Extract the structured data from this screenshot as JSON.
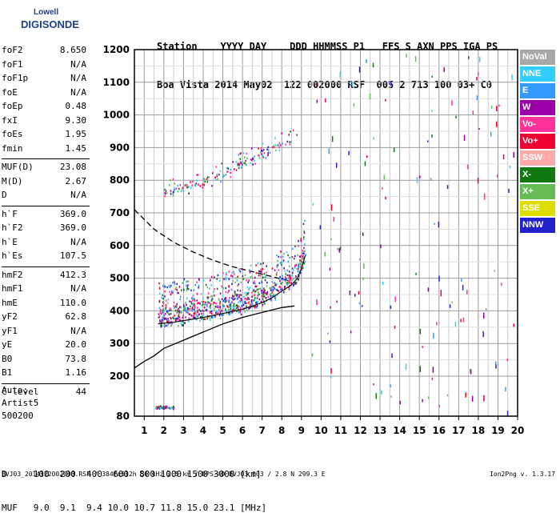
{
  "logo": {
    "line1": "Lowell",
    "line2": "DIGISONDE"
  },
  "header": {
    "line1": "Station    YYYY DAY    DDD HHMMSS P1   FFS S AXN PPS IGA PS",
    "line2": "Boa Vista 2014 May02  122 002000 RSF  005 2 713 100 03+ C0"
  },
  "params": [
    {
      "k": "foF2",
      "v": "8.650"
    },
    {
      "k": "foF1",
      "v": "N/A"
    },
    {
      "k": "foF1p",
      "v": "N/A"
    },
    {
      "k": "foE",
      "v": "N/A"
    },
    {
      "k": "foEp",
      "v": "0.48"
    },
    {
      "k": "fxI",
      "v": "9.30"
    },
    {
      "k": "foEs",
      "v": "1.95"
    },
    {
      "k": "fmin",
      "v": "1.45"
    },
    {
      "k": "MUF(D)",
      "v": "23.08"
    },
    {
      "k": "M(D)",
      "v": "2.67"
    },
    {
      "k": "D",
      "v": "N/A"
    },
    {
      "k": "h`F",
      "v": "369.0"
    },
    {
      "k": "h`F2",
      "v": "369.0"
    },
    {
      "k": "h`E",
      "v": "N/A"
    },
    {
      "k": "h`Es",
      "v": "107.5"
    },
    {
      "k": "hmF2",
      "v": "412.3"
    },
    {
      "k": "hmF1",
      "v": "N/A"
    },
    {
      "k": "hmE",
      "v": "110.0"
    },
    {
      "k": "yF2",
      "v": "62.8"
    },
    {
      "k": "yF1",
      "v": "N/A"
    },
    {
      "k": "yE",
      "v": "20.0"
    },
    {
      "k": "B0",
      "v": "73.8"
    },
    {
      "k": "B1",
      "v": "1.16"
    },
    {
      "k": "C-level",
      "v": "44"
    }
  ],
  "auto": {
    "line1": "Auto:",
    "line2": "Artist5",
    "line3": "500200"
  },
  "legend": [
    {
      "label": "NoVal",
      "color": "#a8a8a8"
    },
    {
      "label": "NNE",
      "color": "#33ccff"
    },
    {
      "label": "E",
      "color": "#3399ff"
    },
    {
      "label": "W",
      "color": "#9900aa"
    },
    {
      "label": "Vo-",
      "color": "#ff3399"
    },
    {
      "label": "Vo+",
      "color": "#ee0033"
    },
    {
      "label": "SSW",
      "color": "#ffaaaa"
    },
    {
      "label": "X-",
      "color": "#117711"
    },
    {
      "label": "X+",
      "color": "#66bb55"
    },
    {
      "label": "SSE",
      "color": "#dddd00"
    },
    {
      "label": "NNW",
      "color": "#2222cc"
    }
  ],
  "conversion": {
    "line1": "D     100  200  400  600  800 1000 1500 3000 [km]",
    "line2": "MUF   9.0  9.1  9.4 10.0 10.7 11.8 15.0 23.1 [MHz]"
  },
  "footer": {
    "left": "BVJ03_2014122002000.RSF / 384fx512h 50 kHz 2.5 km / DPS-4D BVJ03 003 / 2.8 N 299.3 E",
    "right": "Ion2Png v. 1.3.17"
  },
  "chart_data": {
    "type": "scatter",
    "xlim": [
      0.5,
      20
    ],
    "ylim": [
      80,
      1200
    ],
    "xticks": [
      "1",
      "2",
      "3",
      "4",
      "5",
      "6",
      "7",
      "8",
      "9",
      "10",
      "11",
      "12",
      "13",
      "14",
      "15",
      "16",
      "17",
      "18",
      "19",
      "20"
    ],
    "yticks": [
      "80",
      "200",
      "300",
      "400",
      "500",
      "600",
      "700",
      "800",
      "900",
      "1000",
      "1100",
      "1200"
    ],
    "grid": true,
    "trace_F2": {
      "x": [
        1.7,
        2,
        2.5,
        3,
        4,
        5,
        6,
        7,
        7.5,
        8,
        8.5,
        8.8,
        9,
        9.2
      ],
      "y": [
        360,
        362,
        365,
        370,
        380,
        392,
        405,
        425,
        440,
        460,
        480,
        500,
        530,
        570
      ]
    },
    "trace_F2_second": {
      "x": [
        2,
        3,
        4,
        5,
        6,
        7,
        8,
        8.8
      ],
      "y": [
        760,
        775,
        795,
        820,
        850,
        880,
        910,
        930
      ]
    },
    "profile_solid": {
      "x": [
        0.5,
        1,
        1.5,
        2,
        3,
        4,
        5,
        6,
        7,
        8,
        8.65
      ],
      "y": [
        225,
        245,
        262,
        285,
        310,
        335,
        360,
        380,
        395,
        410,
        415
      ]
    },
    "profile_dashed": {
      "x": [
        0.5,
        1.5,
        2.5,
        3.5,
        4.5,
        5.5,
        6.5,
        7.5,
        8.5
      ],
      "y": [
        710,
        650,
        610,
        580,
        555,
        535,
        520,
        505,
        490
      ]
    },
    "es_trace": {
      "x": [
        1.5,
        1.8,
        2.1,
        2.5
      ],
      "y": [
        108,
        108,
        107,
        107
      ]
    }
  }
}
